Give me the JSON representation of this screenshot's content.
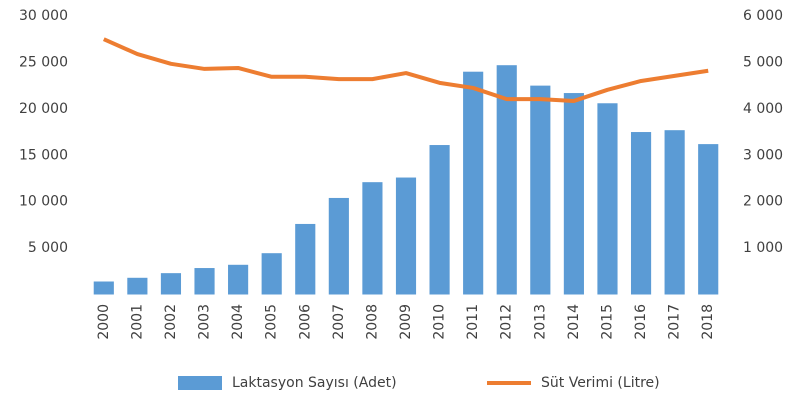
{
  "chart_data": {
    "type": "bar",
    "categories": [
      "2000",
      "2001",
      "2002",
      "2003",
      "2004",
      "2005",
      "2006",
      "2007",
      "2008",
      "2009",
      "2010",
      "2011",
      "2012",
      "2013",
      "2014",
      "2015",
      "2016",
      "2017",
      "2018"
    ],
    "series": [
      {
        "name": "Laktasyon Sayısı (Adet)",
        "type": "bar",
        "color": "#5b9bd5",
        "values": [
          1400,
          1800,
          2300,
          2850,
          3200,
          4450,
          7600,
          10400,
          12100,
          12600,
          16100,
          24000,
          24700,
          22500,
          21700,
          20600,
          17500,
          17700,
          16200
        ]
      },
      {
        "name": "Süt Verimi (Litre)",
        "type": "line",
        "axis": "y2",
        "color": "#ed7d31",
        "values": [
          5500,
          5180,
          4970,
          4860,
          4880,
          4690,
          4690,
          4640,
          4640,
          4770,
          4560,
          4450,
          4210,
          4210,
          4170,
          4410,
          4600,
          4710,
          4820
        ]
      }
    ],
    "ylim": [
      0,
      30000
    ],
    "yticks": [
      {
        "value": 5000,
        "label": "5 000"
      },
      {
        "value": 10000,
        "label": "10 000"
      },
      {
        "value": 15000,
        "label": "15 000"
      },
      {
        "value": 20000,
        "label": "20 000"
      },
      {
        "value": 25000,
        "label": "25 000"
      },
      {
        "value": 30000,
        "label": "30 000"
      }
    ],
    "y2lim": [
      0,
      6000
    ],
    "y2ticks": [
      {
        "value": 1000,
        "label": "1 000"
      },
      {
        "value": 2000,
        "label": "2 000"
      },
      {
        "value": 3000,
        "label": "3 000"
      },
      {
        "value": 4000,
        "label": "4 000"
      },
      {
        "value": 5000,
        "label": "5 000"
      },
      {
        "value": 6000,
        "label": "6 000"
      }
    ],
    "grid": false,
    "legend": "bottom"
  }
}
